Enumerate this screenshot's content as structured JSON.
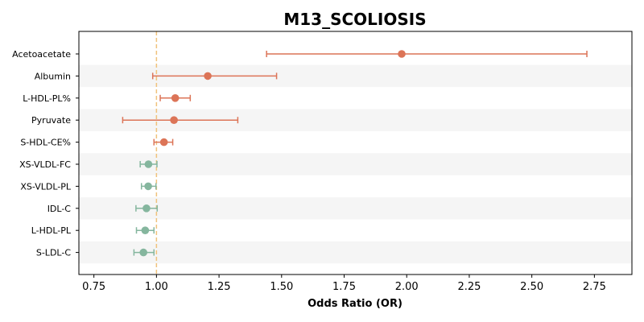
{
  "chart_data": {
    "type": "forest",
    "title": "M13_SCOLIOSIS",
    "xlabel": "Odds Ratio (OR)",
    "ylabel": "",
    "xlim": [
      0.69,
      2.9
    ],
    "xticks": [
      0.75,
      1.0,
      1.25,
      1.5,
      1.75,
      2.0,
      2.25,
      2.5,
      2.75
    ],
    "xtick_labels": [
      "0.75",
      "1.00",
      "1.25",
      "1.50",
      "1.75",
      "2.00",
      "2.25",
      "2.50",
      "2.75"
    ],
    "reference_line": 1.0,
    "colors": {
      "risk": "#dc7457",
      "protective": "#85b69e",
      "reference": "#f0c27c",
      "band": "#f5f5f5"
    },
    "rows": [
      {
        "label": "Acetoacetate",
        "or": 1.98,
        "lo": 1.44,
        "hi": 2.72,
        "group": "risk"
      },
      {
        "label": "Albumin",
        "or": 1.205,
        "lo": 0.985,
        "hi": 1.48,
        "group": "risk"
      },
      {
        "label": "L-HDL-PL%",
        "or": 1.075,
        "lo": 1.015,
        "hi": 1.135,
        "group": "risk"
      },
      {
        "label": "Pyruvate",
        "or": 1.07,
        "lo": 0.865,
        "hi": 1.325,
        "group": "risk"
      },
      {
        "label": "S-HDL-CE%",
        "or": 1.03,
        "lo": 0.99,
        "hi": 1.065,
        "group": "risk"
      },
      {
        "label": "XS-VLDL-FC",
        "or": 0.968,
        "lo": 0.935,
        "hi": 1.002,
        "group": "protective"
      },
      {
        "label": "XS-VLDL-PL",
        "or": 0.967,
        "lo": 0.94,
        "hi": 0.998,
        "group": "protective"
      },
      {
        "label": "IDL-C",
        "or": 0.96,
        "lo": 0.918,
        "hi": 1.003,
        "group": "protective"
      },
      {
        "label": "L-HDL-PL",
        "or": 0.955,
        "lo": 0.92,
        "hi": 0.99,
        "group": "protective"
      },
      {
        "label": "S-LDL-C",
        "or": 0.948,
        "lo": 0.91,
        "hi": 0.99,
        "group": "protective"
      }
    ]
  }
}
